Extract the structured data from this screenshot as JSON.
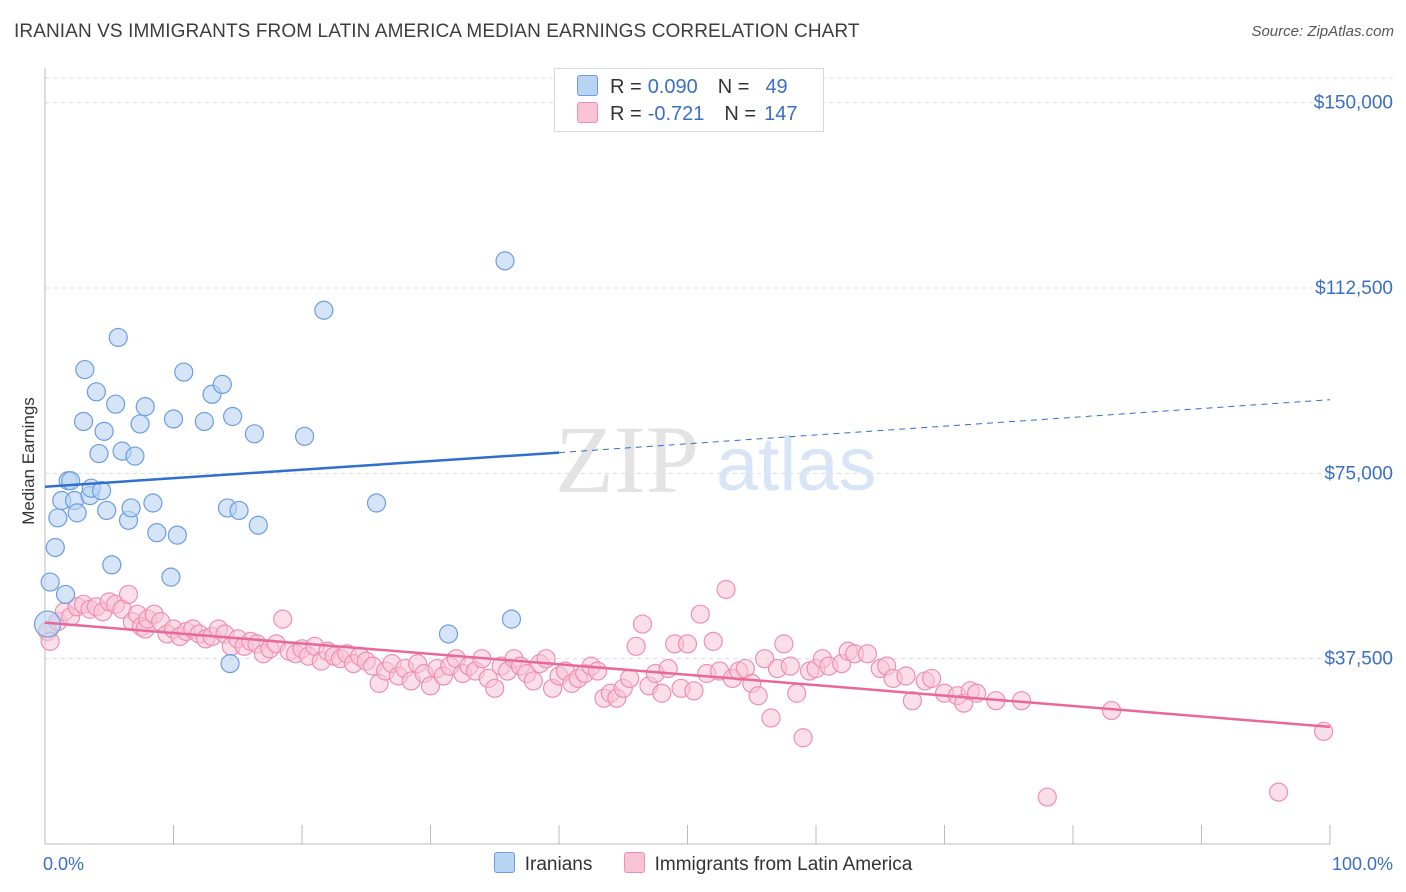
{
  "title": "IRANIAN VS IMMIGRANTS FROM LATIN AMERICA MEDIAN EARNINGS CORRELATION CHART",
  "source": "Source: ZipAtlas.com",
  "colors": {
    "blue_fill": "#b9d3f2",
    "blue_stroke": "#6c9de0",
    "blue_line": "#2f6fce",
    "pink_fill": "#f8c4d5",
    "pink_stroke": "#ee8fb0",
    "pink_line": "#e8689a",
    "accent_text": "#3a6fc4"
  },
  "legend": {
    "rows": [
      {
        "r_label": "R =",
        "r_value": "0.090",
        "n_label": "N =",
        "n_value": "49"
      },
      {
        "r_label": "R =",
        "r_value": "-0.721",
        "n_label": "N =",
        "n_value": "147"
      }
    ]
  },
  "bottom_legend": [
    "Iranians",
    "Immigrants from Latin America"
  ],
  "watermark": {
    "zip": "ZIP",
    "atlas": "atlas"
  },
  "chart_data": {
    "type": "scatter",
    "title": "IRANIAN VS IMMIGRANTS FROM LATIN AMERICA MEDIAN EARNINGS CORRELATION CHART",
    "xlabel": "",
    "ylabel": "Median Earnings",
    "xlim": [
      0,
      100
    ],
    "ylim": [
      0,
      155000
    ],
    "x_tick_labels": [
      "0.0%",
      "100.0%"
    ],
    "y_ticks": [
      37500,
      75000,
      112500,
      150000
    ],
    "y_tick_labels": [
      "$37,500",
      "$75,000",
      "$112,500",
      "$150,000"
    ],
    "grid": true,
    "legend_position": "top-center",
    "series": [
      {
        "name": "Iranians",
        "trend": {
          "x": [
            0,
            40,
            100
          ],
          "y": [
            72300,
            79200,
            89900
          ],
          "solid_until_x": 40
        },
        "points": [
          [
            0.2,
            44500
          ],
          [
            0.4,
            53000
          ],
          [
            0.8,
            60000
          ],
          [
            1.0,
            66000
          ],
          [
            1.3,
            69500
          ],
          [
            1.6,
            50500
          ],
          [
            1.8,
            73500
          ],
          [
            2.0,
            73500
          ],
          [
            2.3,
            69500
          ],
          [
            2.5,
            67000
          ],
          [
            3.0,
            85500
          ],
          [
            3.1,
            96000
          ],
          [
            3.5,
            70500
          ],
          [
            3.6,
            72000
          ],
          [
            4.0,
            91500
          ],
          [
            4.2,
            79000
          ],
          [
            4.4,
            71500
          ],
          [
            4.6,
            83500
          ],
          [
            4.8,
            67500
          ],
          [
            5.2,
            56500
          ],
          [
            5.5,
            89000
          ],
          [
            5.7,
            102500
          ],
          [
            6.0,
            79500
          ],
          [
            6.5,
            65500
          ],
          [
            6.7,
            68000
          ],
          [
            7.0,
            78500
          ],
          [
            7.4,
            85000
          ],
          [
            7.8,
            88500
          ],
          [
            8.4,
            69000
          ],
          [
            8.7,
            63000
          ],
          [
            9.8,
            54000
          ],
          [
            10.0,
            86000
          ],
          [
            10.3,
            62500
          ],
          [
            10.8,
            95500
          ],
          [
            12.4,
            85500
          ],
          [
            13.0,
            91000
          ],
          [
            13.8,
            93000
          ],
          [
            14.2,
            68000
          ],
          [
            14.4,
            36500
          ],
          [
            14.6,
            86500
          ],
          [
            15.1,
            67500
          ],
          [
            16.3,
            83000
          ],
          [
            16.6,
            64500
          ],
          [
            20.2,
            82500
          ],
          [
            21.7,
            108000
          ],
          [
            25.8,
            69000
          ],
          [
            31.4,
            42500
          ],
          [
            35.8,
            118000
          ],
          [
            36.3,
            45500
          ]
        ]
      },
      {
        "name": "Immigrants from Latin America",
        "trend": {
          "x": [
            0,
            100
          ],
          "y": [
            44800,
            23700
          ]
        },
        "points": [
          [
            0.2,
            43000
          ],
          [
            0.4,
            41000
          ],
          [
            1.0,
            45000
          ],
          [
            1.5,
            47000
          ],
          [
            2.0,
            46000
          ],
          [
            2.5,
            48000
          ],
          [
            3.0,
            48500
          ],
          [
            3.5,
            47500
          ],
          [
            4.0,
            48000
          ],
          [
            4.5,
            47000
          ],
          [
            5.0,
            49000
          ],
          [
            5.5,
            48500
          ],
          [
            6.0,
            47500
          ],
          [
            6.5,
            50500
          ],
          [
            6.8,
            45000
          ],
          [
            7.2,
            46500
          ],
          [
            7.5,
            44000
          ],
          [
            7.8,
            43500
          ],
          [
            8.0,
            45500
          ],
          [
            8.5,
            46500
          ],
          [
            9.0,
            45000
          ],
          [
            9.5,
            42500
          ],
          [
            10.0,
            43500
          ],
          [
            10.5,
            42000
          ],
          [
            11.0,
            43000
          ],
          [
            11.5,
            43500
          ],
          [
            12.0,
            42500
          ],
          [
            12.5,
            41500
          ],
          [
            13.0,
            42000
          ],
          [
            13.5,
            43500
          ],
          [
            14.0,
            42500
          ],
          [
            14.5,
            40000
          ],
          [
            15.0,
            41500
          ],
          [
            15.5,
            40000
          ],
          [
            16.0,
            41000
          ],
          [
            16.5,
            40500
          ],
          [
            17.0,
            38500
          ],
          [
            17.5,
            39500
          ],
          [
            18.0,
            40500
          ],
          [
            18.5,
            45500
          ],
          [
            19.0,
            39000
          ],
          [
            19.5,
            38500
          ],
          [
            20.0,
            39500
          ],
          [
            20.5,
            38000
          ],
          [
            21.0,
            40000
          ],
          [
            21.5,
            37000
          ],
          [
            22.0,
            39000
          ],
          [
            22.5,
            38000
          ],
          [
            23.0,
            37500
          ],
          [
            23.5,
            38500
          ],
          [
            24.0,
            36500
          ],
          [
            24.5,
            38000
          ],
          [
            25.0,
            37000
          ],
          [
            25.5,
            36000
          ],
          [
            26.0,
            32500
          ],
          [
            26.5,
            35000
          ],
          [
            27.0,
            36500
          ],
          [
            27.5,
            34000
          ],
          [
            28.0,
            35500
          ],
          [
            28.5,
            33000
          ],
          [
            29.0,
            36500
          ],
          [
            29.5,
            34500
          ],
          [
            30.0,
            32000
          ],
          [
            30.5,
            35500
          ],
          [
            31.0,
            34000
          ],
          [
            31.5,
            36000
          ],
          [
            32.0,
            37500
          ],
          [
            32.5,
            34500
          ],
          [
            33.0,
            36000
          ],
          [
            33.5,
            35000
          ],
          [
            34.0,
            37500
          ],
          [
            34.5,
            33500
          ],
          [
            35.0,
            31500
          ],
          [
            35.5,
            36000
          ],
          [
            36.0,
            35000
          ],
          [
            36.5,
            37500
          ],
          [
            37.0,
            36000
          ],
          [
            37.5,
            34500
          ],
          [
            38.0,
            33000
          ],
          [
            38.5,
            36500
          ],
          [
            39.0,
            37500
          ],
          [
            39.5,
            31500
          ],
          [
            40.0,
            34000
          ],
          [
            40.5,
            35000
          ],
          [
            41.0,
            32500
          ],
          [
            41.5,
            33500
          ],
          [
            42.0,
            34500
          ],
          [
            42.5,
            36000
          ],
          [
            43.0,
            35000
          ],
          [
            43.5,
            29500
          ],
          [
            44.0,
            30500
          ],
          [
            44.5,
            29500
          ],
          [
            45.0,
            31500
          ],
          [
            45.5,
            33500
          ],
          [
            46.0,
            40000
          ],
          [
            46.5,
            44500
          ],
          [
            47.0,
            32000
          ],
          [
            47.5,
            34500
          ],
          [
            48.0,
            30500
          ],
          [
            48.5,
            35500
          ],
          [
            49.0,
            40500
          ],
          [
            49.5,
            31500
          ],
          [
            50.0,
            40500
          ],
          [
            50.5,
            31000
          ],
          [
            51.0,
            46500
          ],
          [
            51.5,
            34500
          ],
          [
            52.0,
            41000
          ],
          [
            52.5,
            35000
          ],
          [
            53.0,
            51500
          ],
          [
            53.5,
            33500
          ],
          [
            54.0,
            35000
          ],
          [
            54.5,
            35500
          ],
          [
            55.0,
            32500
          ],
          [
            55.5,
            30000
          ],
          [
            56.0,
            37500
          ],
          [
            56.5,
            25500
          ],
          [
            57.0,
            35500
          ],
          [
            57.5,
            40500
          ],
          [
            58.0,
            36000
          ],
          [
            58.5,
            30500
          ],
          [
            59.0,
            21500
          ],
          [
            59.5,
            35000
          ],
          [
            60.0,
            35500
          ],
          [
            60.5,
            37500
          ],
          [
            61.0,
            36000
          ],
          [
            62.0,
            36500
          ],
          [
            62.5,
            39000
          ],
          [
            63.0,
            38500
          ],
          [
            64.0,
            38500
          ],
          [
            65.0,
            35500
          ],
          [
            65.5,
            36000
          ],
          [
            66.0,
            33500
          ],
          [
            67.0,
            34000
          ],
          [
            67.5,
            29000
          ],
          [
            68.5,
            33000
          ],
          [
            69.0,
            33500
          ],
          [
            70.0,
            30500
          ],
          [
            71.0,
            30000
          ],
          [
            71.5,
            28500
          ],
          [
            72.0,
            31000
          ],
          [
            72.5,
            30500
          ],
          [
            74.0,
            29000
          ],
          [
            76.0,
            29000
          ],
          [
            78.0,
            9500
          ],
          [
            83.0,
            27000
          ],
          [
            96.0,
            10500
          ],
          [
            99.5,
            22800
          ]
        ]
      }
    ]
  }
}
